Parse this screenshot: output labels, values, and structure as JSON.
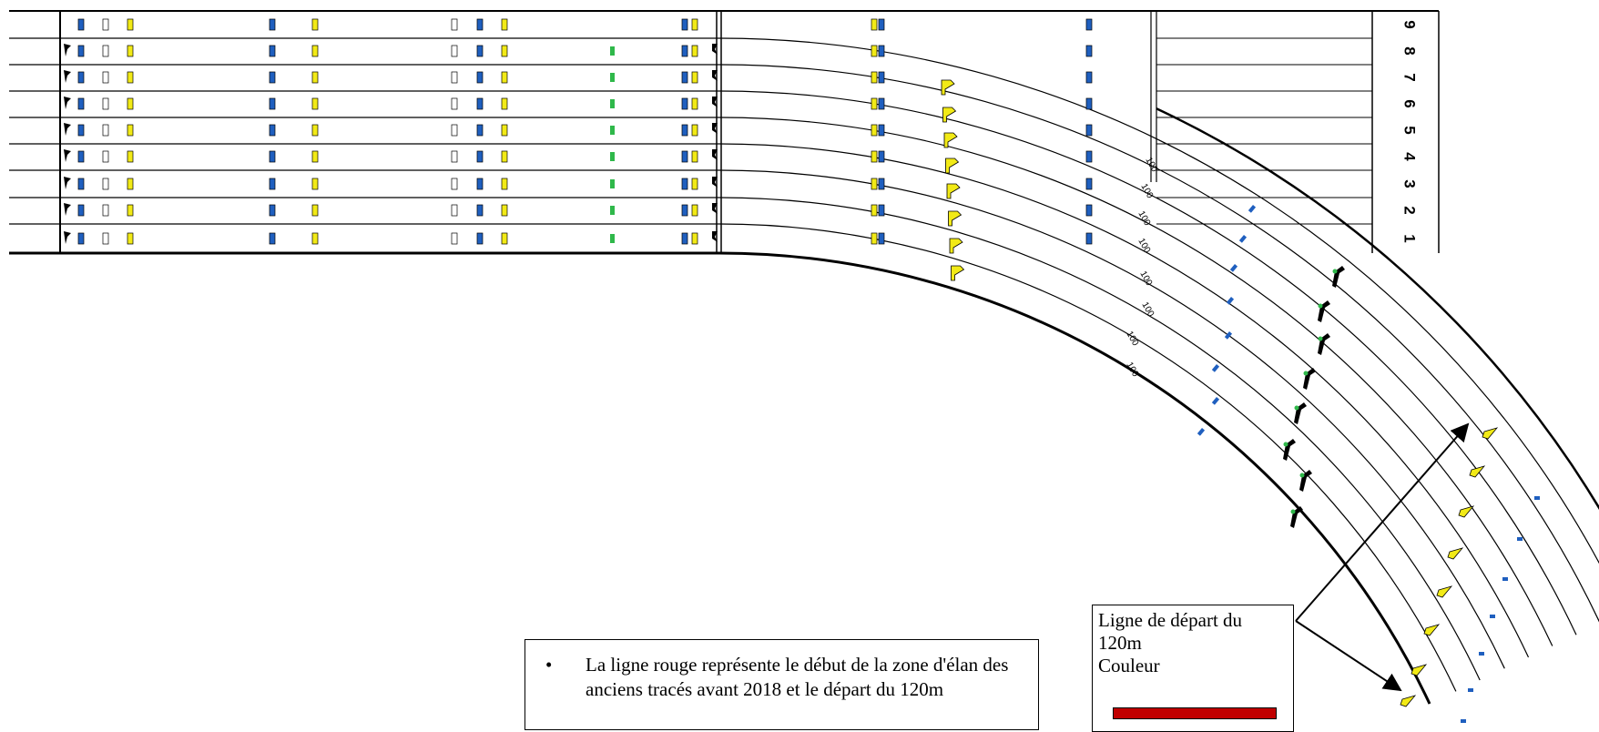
{
  "lane_numbers": [
    "9",
    "8",
    "7",
    "6",
    "5",
    "4",
    "3",
    "2",
    "1"
  ],
  "curve_marker_label": "100",
  "note": {
    "bullet": "•",
    "text": "La ligne rouge représente le début de la zone d'élan des anciens tracés avant 2018 et le départ du 120m"
  },
  "legend": {
    "line1": "Ligne de départ du",
    "line2": "120m",
    "line3": "Couleur",
    "swatch_color": "#c00000"
  },
  "colors": {
    "blue_marker": "#1f5fbf",
    "yellow_marker": "#f2ea16",
    "green_marker": "#2fb84a",
    "line": "#000000",
    "gray_line": "#777777"
  }
}
